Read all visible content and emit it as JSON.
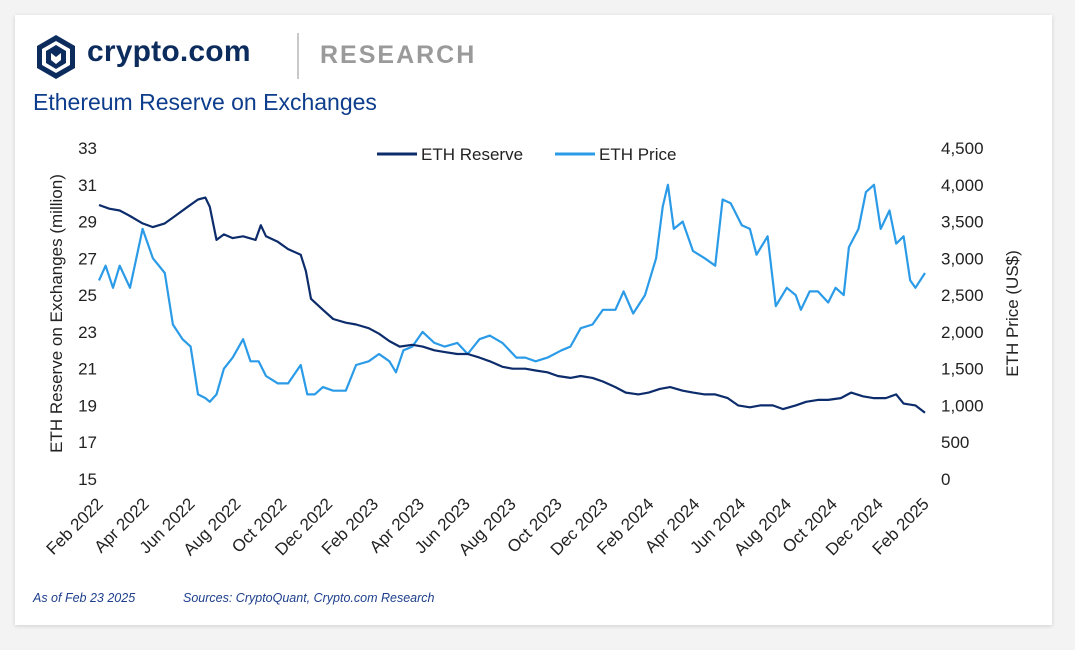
{
  "brand": {
    "name": "crypto.com",
    "section": "RESEARCH",
    "logo_icon": "crypto-com-lion-shield-icon"
  },
  "title": "Ethereum Reserve on Exchanges",
  "footer": {
    "as_of": "As of Feb 23 2025",
    "sources": "Sources: CryptoQuant, Crypto.com Research"
  },
  "colors": {
    "reserve": "#0d2c6b",
    "price": "#2b9be8",
    "brand": "#0d2c5e",
    "title": "#0d3d8c"
  },
  "chart_data": {
    "type": "line",
    "y_left": {
      "label": "ETH Reserve on Exchanges (million)",
      "min": 15,
      "max": 33,
      "ticks": [
        15,
        17,
        19,
        21,
        23,
        25,
        27,
        29,
        31,
        33
      ]
    },
    "y_right": {
      "label": "ETH Price (US$)",
      "min": 0,
      "max": 4500,
      "ticks": [
        "0",
        "500",
        "1,000",
        "1,500",
        "2,000",
        "2,500",
        "3,000",
        "3,500",
        "4,000",
        "4,500"
      ]
    },
    "x": {
      "ticks": [
        "Feb 2022",
        "Apr 2022",
        "Jun 2022",
        "Aug 2022",
        "Oct 2022",
        "Dec 2022",
        "Feb 2023",
        "Apr 2023",
        "Jun 2023",
        "Aug 2023",
        "Oct 2023",
        "Dec 2023",
        "Feb 2024",
        "Apr 2024",
        "Jun 2024",
        "Aug 2024",
        "Oct 2024",
        "Dec 2024",
        "Feb 2025"
      ]
    },
    "legend": {
      "position": "top-center"
    },
    "series": [
      {
        "name": "ETH Reserve",
        "axis": "left",
        "points": [
          [
            "2022-02-01",
            29.9
          ],
          [
            "2022-02-15",
            29.7
          ],
          [
            "2022-03-01",
            29.6
          ],
          [
            "2022-03-15",
            29.3
          ],
          [
            "2022-04-01",
            28.9
          ],
          [
            "2022-04-15",
            28.7
          ],
          [
            "2022-05-01",
            28.9
          ],
          [
            "2022-05-15",
            29.3
          ],
          [
            "2022-06-01",
            29.8
          ],
          [
            "2022-06-15",
            30.2
          ],
          [
            "2022-06-25",
            30.3
          ],
          [
            "2022-07-01",
            29.8
          ],
          [
            "2022-07-10",
            28.0
          ],
          [
            "2022-07-20",
            28.3
          ],
          [
            "2022-08-01",
            28.1
          ],
          [
            "2022-08-15",
            28.2
          ],
          [
            "2022-09-01",
            28.0
          ],
          [
            "2022-09-08",
            28.8
          ],
          [
            "2022-09-15",
            28.2
          ],
          [
            "2022-10-01",
            27.9
          ],
          [
            "2022-10-15",
            27.5
          ],
          [
            "2022-11-01",
            27.2
          ],
          [
            "2022-11-08",
            26.3
          ],
          [
            "2022-11-15",
            24.8
          ],
          [
            "2022-12-01",
            24.2
          ],
          [
            "2022-12-15",
            23.7
          ],
          [
            "2023-01-01",
            23.5
          ],
          [
            "2023-01-15",
            23.4
          ],
          [
            "2023-02-01",
            23.2
          ],
          [
            "2023-02-15",
            22.9
          ],
          [
            "2023-03-01",
            22.5
          ],
          [
            "2023-03-15",
            22.2
          ],
          [
            "2023-04-01",
            22.3
          ],
          [
            "2023-04-15",
            22.2
          ],
          [
            "2023-05-01",
            22.0
          ],
          [
            "2023-05-15",
            21.9
          ],
          [
            "2023-06-01",
            21.8
          ],
          [
            "2023-06-15",
            21.8
          ],
          [
            "2023-07-01",
            21.6
          ],
          [
            "2023-07-15",
            21.4
          ],
          [
            "2023-08-01",
            21.1
          ],
          [
            "2023-08-15",
            21.0
          ],
          [
            "2023-09-01",
            21.0
          ],
          [
            "2023-09-15",
            20.9
          ],
          [
            "2023-10-01",
            20.8
          ],
          [
            "2023-10-15",
            20.6
          ],
          [
            "2023-11-01",
            20.5
          ],
          [
            "2023-11-15",
            20.6
          ],
          [
            "2023-12-01",
            20.5
          ],
          [
            "2023-12-15",
            20.3
          ],
          [
            "2024-01-01",
            20.0
          ],
          [
            "2024-01-15",
            19.7
          ],
          [
            "2024-02-01",
            19.6
          ],
          [
            "2024-02-15",
            19.7
          ],
          [
            "2024-03-01",
            19.9
          ],
          [
            "2024-03-15",
            20.0
          ],
          [
            "2024-04-01",
            19.8
          ],
          [
            "2024-04-15",
            19.7
          ],
          [
            "2024-05-01",
            19.6
          ],
          [
            "2024-05-15",
            19.6
          ],
          [
            "2024-06-01",
            19.4
          ],
          [
            "2024-06-15",
            19.0
          ],
          [
            "2024-07-01",
            18.9
          ],
          [
            "2024-07-15",
            19.0
          ],
          [
            "2024-08-01",
            19.0
          ],
          [
            "2024-08-15",
            18.8
          ],
          [
            "2024-09-01",
            19.0
          ],
          [
            "2024-09-15",
            19.2
          ],
          [
            "2024-10-01",
            19.3
          ],
          [
            "2024-10-15",
            19.3
          ],
          [
            "2024-11-01",
            19.4
          ],
          [
            "2024-11-15",
            19.7
          ],
          [
            "2024-12-01",
            19.5
          ],
          [
            "2024-12-15",
            19.4
          ],
          [
            "2025-01-01",
            19.4
          ],
          [
            "2025-01-15",
            19.6
          ],
          [
            "2025-01-25",
            19.1
          ],
          [
            "2025-02-10",
            19.0
          ],
          [
            "2025-02-23",
            18.6
          ]
        ]
      },
      {
        "name": "ETH Price",
        "axis": "right",
        "points": [
          [
            "2022-02-01",
            2700
          ],
          [
            "2022-02-10",
            2900
          ],
          [
            "2022-02-20",
            2600
          ],
          [
            "2022-03-01",
            2900
          ],
          [
            "2022-03-15",
            2600
          ],
          [
            "2022-04-01",
            3400
          ],
          [
            "2022-04-15",
            3000
          ],
          [
            "2022-05-01",
            2800
          ],
          [
            "2022-05-12",
            2100
          ],
          [
            "2022-05-25",
            1900
          ],
          [
            "2022-06-05",
            1800
          ],
          [
            "2022-06-15",
            1150
          ],
          [
            "2022-06-25",
            1100
          ],
          [
            "2022-07-01",
            1050
          ],
          [
            "2022-07-10",
            1150
          ],
          [
            "2022-07-20",
            1500
          ],
          [
            "2022-08-01",
            1650
          ],
          [
            "2022-08-15",
            1900
          ],
          [
            "2022-08-25",
            1600
          ],
          [
            "2022-09-05",
            1600
          ],
          [
            "2022-09-15",
            1400
          ],
          [
            "2022-10-01",
            1300
          ],
          [
            "2022-10-15",
            1300
          ],
          [
            "2022-11-01",
            1550
          ],
          [
            "2022-11-10",
            1150
          ],
          [
            "2022-11-20",
            1150
          ],
          [
            "2022-12-01",
            1250
          ],
          [
            "2022-12-15",
            1200
          ],
          [
            "2023-01-01",
            1200
          ],
          [
            "2023-01-15",
            1550
          ],
          [
            "2023-02-01",
            1600
          ],
          [
            "2023-02-15",
            1700
          ],
          [
            "2023-03-01",
            1600
          ],
          [
            "2023-03-10",
            1450
          ],
          [
            "2023-03-20",
            1750
          ],
          [
            "2023-04-01",
            1800
          ],
          [
            "2023-04-15",
            2000
          ],
          [
            "2023-05-01",
            1850
          ],
          [
            "2023-05-15",
            1800
          ],
          [
            "2023-06-01",
            1850
          ],
          [
            "2023-06-15",
            1700
          ],
          [
            "2023-07-01",
            1900
          ],
          [
            "2023-07-15",
            1950
          ],
          [
            "2023-08-01",
            1850
          ],
          [
            "2023-08-20",
            1650
          ],
          [
            "2023-09-01",
            1650
          ],
          [
            "2023-09-15",
            1600
          ],
          [
            "2023-10-01",
            1650
          ],
          [
            "2023-10-20",
            1750
          ],
          [
            "2023-11-01",
            1800
          ],
          [
            "2023-11-15",
            2050
          ],
          [
            "2023-12-01",
            2100
          ],
          [
            "2023-12-15",
            2300
          ],
          [
            "2024-01-01",
            2300
          ],
          [
            "2024-01-12",
            2550
          ],
          [
            "2024-01-25",
            2250
          ],
          [
            "2024-02-10",
            2500
          ],
          [
            "2024-02-25",
            3000
          ],
          [
            "2024-03-05",
            3700
          ],
          [
            "2024-03-12",
            4000
          ],
          [
            "2024-03-20",
            3400
          ],
          [
            "2024-04-01",
            3500
          ],
          [
            "2024-04-15",
            3100
          ],
          [
            "2024-05-01",
            3000
          ],
          [
            "2024-05-15",
            2900
          ],
          [
            "2024-05-25",
            3800
          ],
          [
            "2024-06-05",
            3750
          ],
          [
            "2024-06-20",
            3450
          ],
          [
            "2024-07-01",
            3400
          ],
          [
            "2024-07-10",
            3050
          ],
          [
            "2024-07-25",
            3300
          ],
          [
            "2024-08-05",
            2350
          ],
          [
            "2024-08-20",
            2600
          ],
          [
            "2024-09-01",
            2500
          ],
          [
            "2024-09-08",
            2300
          ],
          [
            "2024-09-20",
            2550
          ],
          [
            "2024-10-01",
            2550
          ],
          [
            "2024-10-15",
            2400
          ],
          [
            "2024-10-25",
            2600
          ],
          [
            "2024-11-05",
            2500
          ],
          [
            "2024-11-12",
            3150
          ],
          [
            "2024-11-25",
            3400
          ],
          [
            "2024-12-05",
            3900
          ],
          [
            "2024-12-16",
            4000
          ],
          [
            "2024-12-25",
            3400
          ],
          [
            "2025-01-06",
            3650
          ],
          [
            "2025-01-15",
            3200
          ],
          [
            "2025-01-25",
            3300
          ],
          [
            "2025-02-03",
            2700
          ],
          [
            "2025-02-10",
            2600
          ],
          [
            "2025-02-23",
            2800
          ]
        ]
      }
    ]
  }
}
